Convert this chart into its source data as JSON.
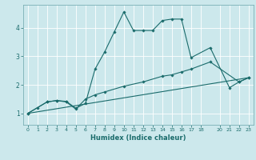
{
  "title": "",
  "xlabel": "Humidex (Indice chaleur)",
  "bg_color": "#cce8ec",
  "line_color": "#1a6b6b",
  "grid_color": "#ffffff",
  "xlim": [
    -0.5,
    23.5
  ],
  "ylim": [
    0.6,
    4.8
  ],
  "xticks": [
    0,
    1,
    2,
    3,
    4,
    5,
    6,
    7,
    8,
    9,
    10,
    11,
    12,
    13,
    14,
    15,
    16,
    17,
    18,
    20,
    21,
    22,
    23
  ],
  "yticks": [
    1,
    2,
    3,
    4
  ],
  "line1_x": [
    0,
    1,
    2,
    3,
    4,
    5,
    6,
    7,
    8,
    9,
    10,
    11,
    12,
    13,
    14,
    15,
    16,
    17,
    19,
    21,
    22,
    23
  ],
  "line1_y": [
    1.0,
    1.2,
    1.4,
    1.45,
    1.42,
    1.18,
    1.35,
    2.55,
    3.15,
    3.85,
    4.55,
    3.9,
    3.9,
    3.9,
    4.25,
    4.3,
    4.3,
    2.95,
    3.3,
    1.9,
    2.1,
    2.25
  ],
  "line2_x": [
    0,
    2,
    3,
    4,
    5,
    6,
    7,
    8,
    10,
    12,
    14,
    15,
    16,
    17,
    19,
    22,
    23
  ],
  "line2_y": [
    1.0,
    1.4,
    1.45,
    1.4,
    1.15,
    1.5,
    1.65,
    1.75,
    1.95,
    2.1,
    2.3,
    2.35,
    2.45,
    2.55,
    2.8,
    2.1,
    2.25
  ],
  "line3_x": [
    0,
    23
  ],
  "line3_y": [
    1.0,
    2.25
  ]
}
